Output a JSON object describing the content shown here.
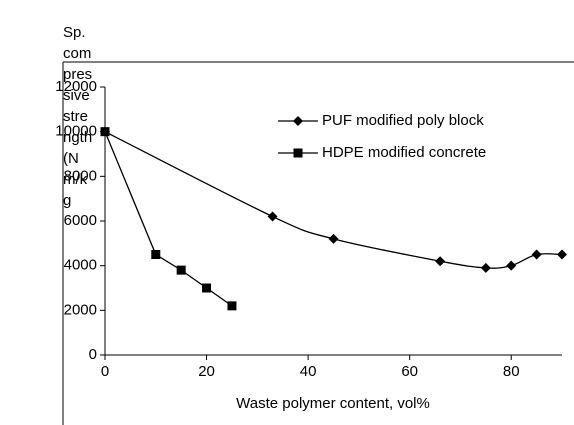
{
  "chart_data": {
    "type": "line",
    "ylabel": "Sp. compressive strength (N m/kg",
    "xlabel": "Waste polymer content, vol%",
    "xlim": [
      0,
      90
    ],
    "xticks": [
      0,
      20,
      40,
      60,
      80
    ],
    "ylim": [
      0,
      12000
    ],
    "yticks": [
      0,
      2000,
      4000,
      6000,
      8000,
      10000,
      12000
    ],
    "grid": false,
    "legend": "upper right",
    "series": [
      {
        "name": "PUF modified poly block",
        "color": "#000000",
        "marker": "diamond",
        "smooth": true,
        "x": [
          0,
          33,
          45,
          66,
          75,
          80,
          85,
          90
        ],
        "values": [
          10000,
          6200,
          5200,
          4200,
          3900,
          4000,
          4500,
          4500
        ]
      },
      {
        "name": "HDPE modified concrete",
        "color": "#000000",
        "marker": "square",
        "smooth": false,
        "x": [
          0,
          10,
          15,
          20,
          25
        ],
        "values": [
          10000,
          4500,
          3800,
          3000,
          2200
        ]
      }
    ]
  }
}
